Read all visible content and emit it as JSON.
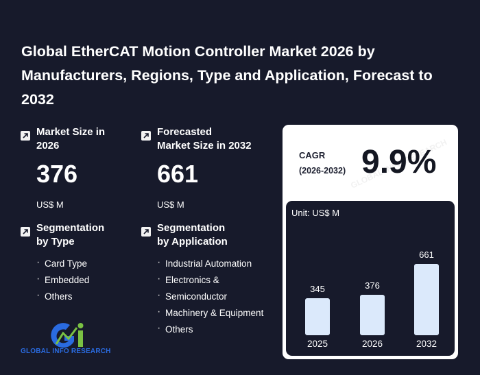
{
  "title": "Global EtherCAT Motion Controller Market 2026 by Manufacturers, Regions, Type and Application, Forecast to 2032",
  "market_size": {
    "label_line1": "Market Size in",
    "label_line2": "2026",
    "value": "376",
    "unit": "US$ M"
  },
  "forecast_size": {
    "label_line1": "Forecasted",
    "label_line2": "Market Size in 2032",
    "value": "661",
    "unit": "US$ M"
  },
  "seg_type": {
    "label_line1": "Segmentation",
    "label_line2": "by Type",
    "items": [
      "Card Type",
      "Embedded",
      "Others"
    ]
  },
  "seg_app": {
    "label_line1": "Segmentation",
    "label_line2": "by Application",
    "items": [
      "Industrial Automation",
      "Electronics &",
      "Semiconductor",
      "Machinery & Equipment",
      "Others"
    ]
  },
  "cagr": {
    "label": "CAGR",
    "range": "(2026-2032)",
    "value": "9.9%"
  },
  "watermark": "GLOBAL INFO RESEARCH",
  "logo_text": "GLOBAL INFO RESEARCH",
  "chart_data": {
    "type": "bar",
    "unit_label": "Unit: US$ M",
    "categories": [
      "2025",
      "2026",
      "2032"
    ],
    "values": [
      345,
      376,
      661
    ]
  },
  "colors": {
    "background": "#171a2b",
    "bar": "#dbe9fb",
    "card": "#ffffff",
    "logo_blue": "#2a6be0",
    "logo_green": "#7ac143"
  }
}
